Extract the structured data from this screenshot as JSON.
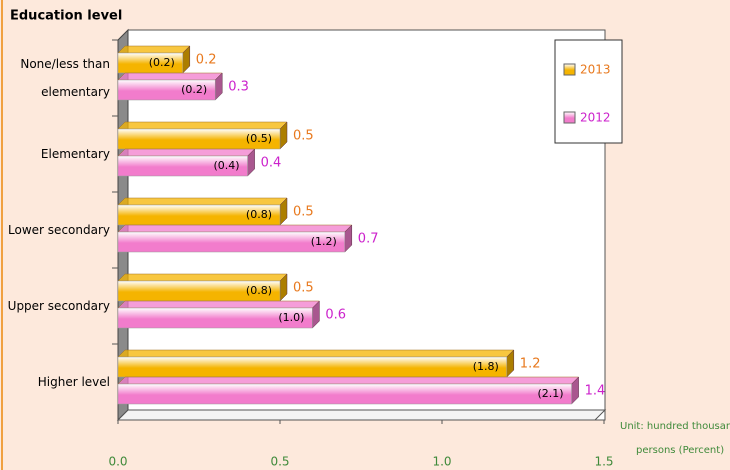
{
  "chart_data": {
    "type": "bar3d_horizontal",
    "title": "Education level",
    "categories": [
      "None/less than elementary",
      "Elementary",
      "Lower secondary",
      "Upper secondary",
      "Higher level"
    ],
    "series": [
      {
        "name": "2013",
        "color": "#f5b400",
        "label_color": "#e8791e",
        "values": [
          0.2,
          0.5,
          0.5,
          0.5,
          1.2
        ],
        "percent": [
          0.2,
          0.5,
          0.8,
          0.8,
          1.8
        ],
        "percent_labels": [
          "(0.2)",
          "(0.5)",
          "(0.8)",
          "(0.8)",
          "(1.8)"
        ]
      },
      {
        "name": "2012",
        "color": "#f27ccc",
        "label_color": "#cc22cc",
        "values": [
          0.3,
          0.4,
          0.7,
          0.6,
          1.4
        ],
        "percent": [
          0.2,
          0.4,
          1.2,
          1.0,
          2.1
        ],
        "percent_labels": [
          "(0.2)",
          "(0.4)",
          "(1.2)",
          "(1.0)",
          "(2.1)"
        ]
      }
    ],
    "xlim": [
      0,
      1.5
    ],
    "xticks": [
      {
        "value": 0,
        "label": "0.0"
      },
      0.5,
      {
        "value": 1,
        "label": "1.0"
      },
      1.5
    ],
    "notes": [
      "Unit: hundred thousand",
      "persons (Percent)"
    ],
    "legend": "top-right"
  }
}
